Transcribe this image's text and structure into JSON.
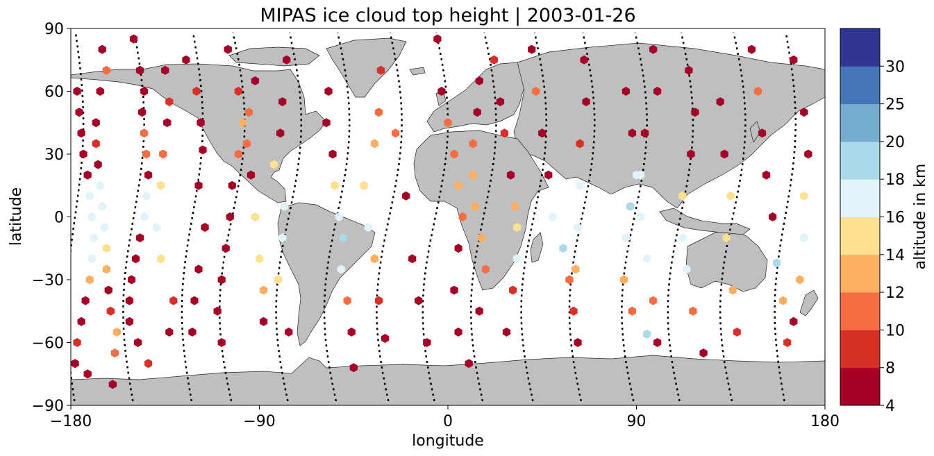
{
  "chart_data": {
    "type": "scatter",
    "title": "MIPAS ice cloud top height | 2003-01-26",
    "xlabel": "longitude",
    "ylabel": "latitude",
    "xlim": [
      -180,
      180
    ],
    "ylim": [
      -90,
      90
    ],
    "xticks": [
      -180,
      -90,
      0,
      90,
      180
    ],
    "xtick_labels": [
      "−180",
      "−90",
      "0",
      "90",
      "180"
    ],
    "yticks": [
      90,
      60,
      30,
      0,
      -30,
      -60,
      -90
    ],
    "ytick_labels": [
      "90",
      "60",
      "30",
      "0",
      "−30",
      "−60",
      "−90"
    ],
    "grid": false,
    "basemap": "world land (grey) with coastlines",
    "colorbar": {
      "label": "altitude in km",
      "bounds": [
        4,
        8,
        10,
        12,
        14,
        16,
        18,
        20,
        25,
        30
      ],
      "tick_labels": [
        "4",
        "8",
        "10",
        "12",
        "14",
        "16",
        "18",
        "20",
        "25",
        "30"
      ],
      "colors": [
        "#a50026",
        "#d73027",
        "#f46d43",
        "#fdae61",
        "#fee090",
        "#e0f3f8",
        "#abd9e9",
        "#74add1",
        "#4575b4",
        "#313695"
      ]
    },
    "orbit_tracks_approx": [
      {
        "lon0": -178,
        "amp": 4
      },
      {
        "lon0": -150,
        "amp": 5
      },
      {
        "lon0": -122,
        "amp": 5
      },
      {
        "lon0": -103,
        "amp": 6
      },
      {
        "lon0": -76,
        "amp": 6
      },
      {
        "lon0": -53,
        "amp": 6
      },
      {
        "lon0": -28,
        "amp": 6
      },
      {
        "lon0": -6,
        "amp": 6
      },
      {
        "lon0": 17,
        "amp": 6
      },
      {
        "lon0": 41,
        "amp": 6
      },
      {
        "lon0": 64,
        "amp": 6
      },
      {
        "lon0": 89,
        "amp": 6
      },
      {
        "lon0": 111,
        "amp": 6
      },
      {
        "lon0": 136,
        "amp": 6
      },
      {
        "lon0": 161,
        "amp": 5
      }
    ],
    "points": [
      {
        "lon": -177,
        "lat": 60,
        "alt": 6
      },
      {
        "lon": -176,
        "lat": 50,
        "alt": 7
      },
      {
        "lon": -175,
        "lat": 40,
        "alt": 6
      },
      {
        "lon": -174,
        "lat": 30,
        "alt": 6
      },
      {
        "lon": -172,
        "lat": 20,
        "alt": 7
      },
      {
        "lon": -171,
        "lat": 10,
        "alt": 17
      },
      {
        "lon": -170,
        "lat": 0,
        "alt": 17
      },
      {
        "lon": -169,
        "lat": -10,
        "alt": 17
      },
      {
        "lon": -170,
        "lat": -20,
        "alt": 16
      },
      {
        "lon": -171,
        "lat": -30,
        "alt": 13
      },
      {
        "lon": -173,
        "lat": -40,
        "alt": 6
      },
      {
        "lon": -175,
        "lat": -50,
        "alt": 6
      },
      {
        "lon": -177,
        "lat": -60,
        "alt": 9
      },
      {
        "lon": -178,
        "lat": -70,
        "alt": 7
      },
      {
        "lon": -165,
        "lat": 80,
        "alt": 6
      },
      {
        "lon": -163,
        "lat": 70,
        "alt": 10
      },
      {
        "lon": -166,
        "lat": 60,
        "alt": 6
      },
      {
        "lon": -168,
        "lat": 45,
        "alt": 6
      },
      {
        "lon": -168,
        "lat": 35,
        "alt": 9
      },
      {
        "lon": -167,
        "lat": 25,
        "alt": 6
      },
      {
        "lon": -166,
        "lat": 15,
        "alt": 16
      },
      {
        "lon": -165,
        "lat": 5,
        "alt": 16
      },
      {
        "lon": -164,
        "lat": -5,
        "alt": 17
      },
      {
        "lon": -163,
        "lat": -15,
        "alt": 15
      },
      {
        "lon": -163,
        "lat": -25,
        "alt": 13
      },
      {
        "lon": -162,
        "lat": -35,
        "alt": 7
      },
      {
        "lon": -161,
        "lat": -45,
        "alt": 9
      },
      {
        "lon": -158,
        "lat": -55,
        "alt": 12
      },
      {
        "lon": -159,
        "lat": -65,
        "alt": 11
      },
      {
        "lon": -172,
        "lat": -75,
        "alt": 6
      },
      {
        "lon": -160,
        "lat": -80,
        "alt": 7
      },
      {
        "lon": -150,
        "lat": 85,
        "alt": 6
      },
      {
        "lon": -147,
        "lat": 70,
        "alt": 7
      },
      {
        "lon": -145,
        "lat": 60,
        "alt": 6
      },
      {
        "lon": -146,
        "lat": 50,
        "alt": 7
      },
      {
        "lon": -145,
        "lat": 40,
        "alt": 10
      },
      {
        "lon": -144,
        "lat": 30,
        "alt": 11
      },
      {
        "lon": -143,
        "lat": 20,
        "alt": 6
      },
      {
        "lon": -144,
        "lat": 10,
        "alt": 17
      },
      {
        "lon": -145,
        "lat": 0,
        "alt": 17
      },
      {
        "lon": -147,
        "lat": -10,
        "alt": 6
      },
      {
        "lon": -149,
        "lat": -20,
        "alt": 7
      },
      {
        "lon": -151,
        "lat": -30,
        "alt": 7
      },
      {
        "lon": -152,
        "lat": -40,
        "alt": 6
      },
      {
        "lon": -152,
        "lat": -50,
        "alt": 7
      },
      {
        "lon": -148,
        "lat": -60,
        "alt": 6
      },
      {
        "lon": -143,
        "lat": -70,
        "alt": 9
      },
      {
        "lon": -135,
        "lat": 70,
        "alt": 6
      },
      {
        "lon": -133,
        "lat": 55,
        "alt": 9
      },
      {
        "lon": -134,
        "lat": 45,
        "alt": 7
      },
      {
        "lon": -136,
        "lat": 30,
        "alt": 11
      },
      {
        "lon": -137,
        "lat": 15,
        "alt": 15
      },
      {
        "lon": -139,
        "lat": -5,
        "alt": 17
      },
      {
        "lon": -137,
        "lat": -20,
        "alt": 15
      },
      {
        "lon": -131,
        "lat": -40,
        "alt": 9
      },
      {
        "lon": -133,
        "lat": -55,
        "alt": 7
      },
      {
        "lon": -125,
        "lat": 75,
        "alt": 6
      },
      {
        "lon": -120,
        "lat": 60,
        "alt": 9
      },
      {
        "lon": -118,
        "lat": 45,
        "alt": 6
      },
      {
        "lon": -117,
        "lat": 32,
        "alt": 6
      },
      {
        "lon": -119,
        "lat": 15,
        "alt": 6
      },
      {
        "lon": -116,
        "lat": -5,
        "alt": 6
      },
      {
        "lon": -119,
        "lat": -25,
        "alt": 6
      },
      {
        "lon": -121,
        "lat": -40,
        "alt": 6
      },
      {
        "lon": -122,
        "lat": -55,
        "alt": 6
      },
      {
        "lon": -105,
        "lat": 80,
        "alt": 6
      },
      {
        "lon": -100,
        "lat": 60,
        "alt": 9
      },
      {
        "lon": -98,
        "lat": 45,
        "alt": 12
      },
      {
        "lon": -100,
        "lat": 30,
        "alt": 10
      },
      {
        "lon": -103,
        "lat": 15,
        "alt": 7
      },
      {
        "lon": -104,
        "lat": 0,
        "alt": 6
      },
      {
        "lon": -106,
        "lat": -15,
        "alt": 6
      },
      {
        "lon": -108,
        "lat": -30,
        "alt": 6
      },
      {
        "lon": -110,
        "lat": -45,
        "alt": 6
      },
      {
        "lon": -108,
        "lat": -60,
        "alt": 6
      },
      {
        "lon": -92,
        "lat": 65,
        "alt": 6
      },
      {
        "lon": -95,
        "lat": 50,
        "alt": 11
      },
      {
        "lon": -96,
        "lat": 35,
        "alt": 11
      },
      {
        "lon": -94,
        "lat": 20,
        "alt": 6
      },
      {
        "lon": -92,
        "lat": 0,
        "alt": 15
      },
      {
        "lon": -90,
        "lat": -20,
        "alt": 15
      },
      {
        "lon": -88,
        "lat": -35,
        "alt": 12
      },
      {
        "lon": -88,
        "lat": -50,
        "alt": 6
      },
      {
        "lon": -77,
        "lat": 75,
        "alt": 6
      },
      {
        "lon": -79,
        "lat": 55,
        "alt": 6
      },
      {
        "lon": -80,
        "lat": 40,
        "alt": 6
      },
      {
        "lon": -83,
        "lat": 25,
        "alt": 15
      },
      {
        "lon": -78,
        "lat": 5,
        "alt": 17
      },
      {
        "lon": -79,
        "lat": -10,
        "alt": 17
      },
      {
        "lon": -81,
        "lat": -30,
        "alt": 14
      },
      {
        "lon": -76,
        "lat": -55,
        "alt": 7
      },
      {
        "lon": -57,
        "lat": 60,
        "alt": 6
      },
      {
        "lon": -58,
        "lat": 45,
        "alt": 6
      },
      {
        "lon": -55,
        "lat": 30,
        "alt": 6
      },
      {
        "lon": -54,
        "lat": 15,
        "alt": 15
      },
      {
        "lon": -52,
        "lat": 0,
        "alt": 17
      },
      {
        "lon": -50,
        "lat": -10,
        "alt": 18
      },
      {
        "lon": -51,
        "lat": -25,
        "alt": 17
      },
      {
        "lon": -48,
        "lat": -40,
        "alt": 11
      },
      {
        "lon": -46,
        "lat": -55,
        "alt": 7
      },
      {
        "lon": -45,
        "lat": -72,
        "alt": 6
      },
      {
        "lon": -32,
        "lat": 70,
        "alt": 9
      },
      {
        "lon": -33,
        "lat": 50,
        "alt": 11
      },
      {
        "lon": -35,
        "lat": 35,
        "alt": 13
      },
      {
        "lon": -40,
        "lat": 15,
        "alt": 15
      },
      {
        "lon": -38,
        "lat": -5,
        "alt": 16
      },
      {
        "lon": -35,
        "lat": -20,
        "alt": 13
      },
      {
        "lon": -33,
        "lat": -40,
        "alt": 9
      },
      {
        "lon": -30,
        "lat": -58,
        "alt": 6
      },
      {
        "lon": -25,
        "lat": 40,
        "alt": 11
      },
      {
        "lon": -20,
        "lat": 10,
        "alt": 6
      },
      {
        "lon": -17,
        "lat": -20,
        "alt": 6
      },
      {
        "lon": -14,
        "lat": -40,
        "alt": 6
      },
      {
        "lon": -10,
        "lat": -60,
        "alt": 7
      },
      {
        "lon": -5,
        "lat": 85,
        "alt": 6
      },
      {
        "lon": -3,
        "lat": 60,
        "alt": 6
      },
      {
        "lon": 0,
        "lat": 45,
        "alt": 11
      },
      {
        "lon": 3,
        "lat": 30,
        "alt": 11
      },
      {
        "lon": 5,
        "lat": 15,
        "alt": 13
      },
      {
        "lon": 7,
        "lat": 0,
        "alt": 11
      },
      {
        "lon": 5,
        "lat": -15,
        "alt": 6
      },
      {
        "lon": 3,
        "lat": -35,
        "alt": 6
      },
      {
        "lon": 5,
        "lat": -55,
        "alt": 6
      },
      {
        "lon": 10,
        "lat": -70,
        "alt": 6
      },
      {
        "lon": 15,
        "lat": 65,
        "alt": 6
      },
      {
        "lon": 14,
        "lat": 50,
        "alt": 6
      },
      {
        "lon": 12,
        "lat": 35,
        "alt": 11
      },
      {
        "lon": 12,
        "lat": 20,
        "alt": 13
      },
      {
        "lon": 13,
        "lat": 5,
        "alt": 13
      },
      {
        "lon": 16,
        "lat": -10,
        "alt": 13
      },
      {
        "lon": 18,
        "lat": -25,
        "alt": 11
      },
      {
        "lon": 15,
        "lat": -45,
        "alt": 6
      },
      {
        "lon": 22,
        "lat": 75,
        "alt": 9
      },
      {
        "lon": 25,
        "lat": 55,
        "alt": 6
      },
      {
        "lon": 27,
        "lat": 40,
        "alt": 9
      },
      {
        "lon": 30,
        "lat": 20,
        "alt": 6
      },
      {
        "lon": 32,
        "lat": 5,
        "alt": 13
      },
      {
        "lon": 33,
        "lat": -5,
        "alt": 15
      },
      {
        "lon": 33,
        "lat": -20,
        "alt": 17
      },
      {
        "lon": 31,
        "lat": -35,
        "alt": 9
      },
      {
        "lon": 28,
        "lat": -55,
        "alt": 6
      },
      {
        "lon": 40,
        "lat": 80,
        "alt": 6
      },
      {
        "lon": 42,
        "lat": 60,
        "alt": 11
      },
      {
        "lon": 45,
        "lat": 40,
        "alt": 6
      },
      {
        "lon": 48,
        "lat": 20,
        "alt": 6
      },
      {
        "lon": 50,
        "lat": 0,
        "alt": 16
      },
      {
        "lon": 55,
        "lat": -15,
        "alt": 18
      },
      {
        "lon": 58,
        "lat": -30,
        "alt": 11
      },
      {
        "lon": 60,
        "lat": -45,
        "alt": 9
      },
      {
        "lon": 62,
        "lat": -60,
        "alt": 6
      },
      {
        "lon": 65,
        "lat": 75,
        "alt": 7
      },
      {
        "lon": 66,
        "lat": 55,
        "alt": 6
      },
      {
        "lon": 63,
        "lat": 35,
        "alt": 9
      },
      {
        "lon": 63,
        "lat": 15,
        "alt": 16
      },
      {
        "lon": 62,
        "lat": -5,
        "alt": 16
      },
      {
        "lon": 61,
        "lat": -25,
        "alt": 13
      },
      {
        "lon": 85,
        "lat": 60,
        "alt": 6
      },
      {
        "lon": 88,
        "lat": 40,
        "alt": 6
      },
      {
        "lon": 90,
        "lat": 20,
        "alt": 16
      },
      {
        "lon": 87,
        "lat": 5,
        "alt": 18
      },
      {
        "lon": 85,
        "lat": -10,
        "alt": 16
      },
      {
        "lon": 84,
        "lat": -30,
        "alt": 13
      },
      {
        "lon": 88,
        "lat": -45,
        "alt": 11
      },
      {
        "lon": 95,
        "lat": -56,
        "alt": 18
      },
      {
        "lon": 98,
        "lat": 80,
        "alt": 6
      },
      {
        "lon": 100,
        "lat": 60,
        "alt": 6
      },
      {
        "lon": 94,
        "lat": 40,
        "alt": 6
      },
      {
        "lon": 92,
        "lat": 20,
        "alt": 17
      },
      {
        "lon": 92,
        "lat": 0,
        "alt": 16
      },
      {
        "lon": 95,
        "lat": -20,
        "alt": 16
      },
      {
        "lon": 98,
        "lat": -40,
        "alt": 11
      },
      {
        "lon": 100,
        "lat": -60,
        "alt": 7
      },
      {
        "lon": 115,
        "lat": 70,
        "alt": 6
      },
      {
        "lon": 118,
        "lat": 50,
        "alt": 6
      },
      {
        "lon": 116,
        "lat": 30,
        "alt": 6
      },
      {
        "lon": 112,
        "lat": 10,
        "alt": 15
      },
      {
        "lon": 112,
        "lat": -10,
        "alt": 17
      },
      {
        "lon": 114,
        "lat": -25,
        "alt": 17
      },
      {
        "lon": 117,
        "lat": -45,
        "alt": 11
      },
      {
        "lon": 122,
        "lat": -65,
        "alt": 6
      },
      {
        "lon": 130,
        "lat": 55,
        "alt": 6
      },
      {
        "lon": 132,
        "lat": 30,
        "alt": 6
      },
      {
        "lon": 135,
        "lat": 10,
        "alt": 15
      },
      {
        "lon": 133,
        "lat": -10,
        "alt": 15
      },
      {
        "lon": 136,
        "lat": -35,
        "alt": 12
      },
      {
        "lon": 138,
        "lat": -55,
        "alt": 9
      },
      {
        "lon": 145,
        "lat": 80,
        "alt": 6
      },
      {
        "lon": 148,
        "lat": 60,
        "alt": 11
      },
      {
        "lon": 150,
        "lat": 40,
        "alt": 6
      },
      {
        "lon": 152,
        "lat": 20,
        "alt": 6
      },
      {
        "lon": 155,
        "lat": 0,
        "alt": 6
      },
      {
        "lon": 157,
        "lat": -22,
        "alt": 18
      },
      {
        "lon": 160,
        "lat": -40,
        "alt": 13
      },
      {
        "lon": 162,
        "lat": -60,
        "alt": 9
      },
      {
        "lon": 165,
        "lat": 75,
        "alt": 6
      },
      {
        "lon": 170,
        "lat": 50,
        "alt": 6
      },
      {
        "lon": 172,
        "lat": 30,
        "alt": 6
      },
      {
        "lon": 170,
        "lat": 10,
        "alt": 15
      },
      {
        "lon": 170,
        "lat": -10,
        "alt": 16
      },
      {
        "lon": 168,
        "lat": -30,
        "alt": 13
      },
      {
        "lon": 165,
        "lat": -50,
        "alt": 6
      }
    ]
  }
}
